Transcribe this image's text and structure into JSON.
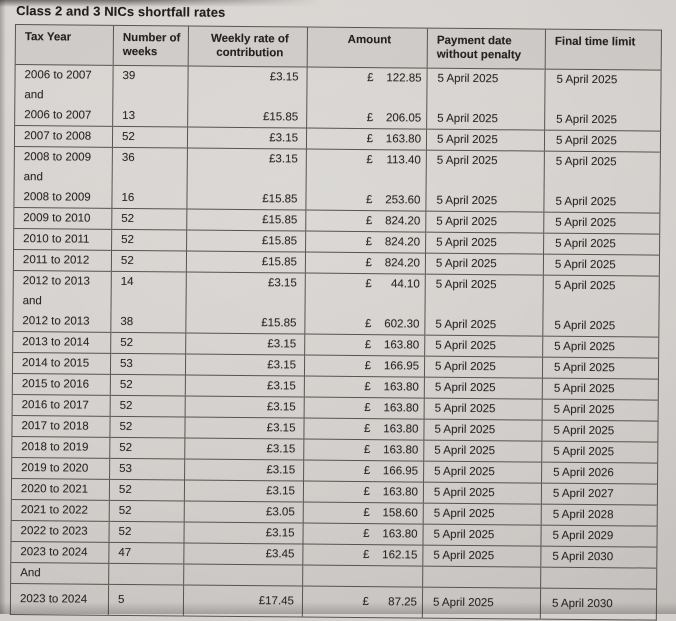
{
  "title": "Class 2 and 3 NICs shortfall rates",
  "colors": {
    "paper": "#d5d1ce",
    "table_line": "#57534e",
    "text": "#2a2927",
    "title_text": "#1f1e1c"
  },
  "table": {
    "columns": [
      "Tax Year",
      "Number of weeks",
      "Weekly rate of contribution",
      "Amount",
      "Payment date without penalty",
      "Final time limit"
    ],
    "rows": [
      {
        "tax_year": "2006 to 2007",
        "weeks": "39",
        "rate": "£3.15",
        "amount": "£ 122.85",
        "payment_date": "5 April 2025",
        "final_time_limit": "5 April 2025",
        "divider_above": true
      },
      {
        "tax_year": "and",
        "weeks": "",
        "rate": "",
        "amount": "",
        "payment_date": "",
        "final_time_limit": "",
        "divider_above": false
      },
      {
        "tax_year": "2006 to 2007",
        "weeks": "13",
        "rate": "£15.85",
        "amount": "£ 206.05",
        "payment_date": "5 April 2025",
        "final_time_limit": "5 April 2025",
        "divider_above": false
      },
      {
        "tax_year": "2007 to 2008",
        "weeks": "52",
        "rate": "£3.15",
        "amount": "£ 163.80",
        "payment_date": "5 April 2025",
        "final_time_limit": "5 April 2025",
        "divider_above": true
      },
      {
        "tax_year": "2008 to 2009",
        "weeks": "36",
        "rate": "£3.15",
        "amount": "£ 113.40",
        "payment_date": "5 April 2025",
        "final_time_limit": "5 April 2025",
        "divider_above": true
      },
      {
        "tax_year": "and",
        "weeks": "",
        "rate": "",
        "amount": "",
        "payment_date": "",
        "final_time_limit": "",
        "divider_above": false
      },
      {
        "tax_year": "2008 to 2009",
        "weeks": "16",
        "rate": "£15.85",
        "amount": "£ 253.60",
        "payment_date": "5 April 2025",
        "final_time_limit": "5 April 2025",
        "divider_above": false
      },
      {
        "tax_year": "2009 to 2010",
        "weeks": "52",
        "rate": "£15.85",
        "amount": "£ 824.20",
        "payment_date": "5 April 2025",
        "final_time_limit": "5 April 2025",
        "divider_above": true
      },
      {
        "tax_year": "2010 to 2011",
        "weeks": "52",
        "rate": "£15.85",
        "amount": "£ 824.20",
        "payment_date": "5 April 2025",
        "final_time_limit": "5 April 2025",
        "divider_above": true
      },
      {
        "tax_year": "2011 to 2012",
        "weeks": "52",
        "rate": "£15.85",
        "amount": "£ 824.20",
        "payment_date": "5 April 2025",
        "final_time_limit": "5 April 2025",
        "divider_above": true
      },
      {
        "tax_year": "2012 to 2013",
        "weeks": "14",
        "rate": "£3.15",
        "amount": "£ 44.10",
        "payment_date": "5 April 2025",
        "final_time_limit": "5 April 2025",
        "divider_above": true
      },
      {
        "tax_year": "and",
        "weeks": "",
        "rate": "",
        "amount": "",
        "payment_date": "",
        "final_time_limit": "",
        "divider_above": false
      },
      {
        "tax_year": "2012 to 2013",
        "weeks": "38",
        "rate": "£15.85",
        "amount": "£ 602.30",
        "payment_date": "5 April 2025",
        "final_time_limit": "5 April 2025",
        "divider_above": false
      },
      {
        "tax_year": "2013 to 2014",
        "weeks": "52",
        "rate": "£3.15",
        "amount": "£ 163.80",
        "payment_date": "5 April 2025",
        "final_time_limit": "5 April 2025",
        "divider_above": true
      },
      {
        "tax_year": "2014 to 2015",
        "weeks": "53",
        "rate": "£3.15",
        "amount": "£ 166.95",
        "payment_date": "5 April 2025",
        "final_time_limit": "5 April 2025",
        "divider_above": true
      },
      {
        "tax_year": "2015 to 2016",
        "weeks": "52",
        "rate": "£3.15",
        "amount": "£ 163.80",
        "payment_date": "5 April 2025",
        "final_time_limit": "5 April 2025",
        "divider_above": true
      },
      {
        "tax_year": "2016 to 2017",
        "weeks": "52",
        "rate": "£3.15",
        "amount": "£ 163.80",
        "payment_date": "5 April 2025",
        "final_time_limit": "5 April 2025",
        "divider_above": true
      },
      {
        "tax_year": "2017 to 2018",
        "weeks": "52",
        "rate": "£3.15",
        "amount": "£ 163.80",
        "payment_date": "5 April 2025",
        "final_time_limit": "5 April 2025",
        "divider_above": true
      },
      {
        "tax_year": "2018 to 2019",
        "weeks": "52",
        "rate": "£3.15",
        "amount": "£ 163.80",
        "payment_date": "5 April 2025",
        "final_time_limit": "5 April 2025",
        "divider_above": true
      },
      {
        "tax_year": "2019 to 2020",
        "weeks": "53",
        "rate": "£3.15",
        "amount": "£ 166.95",
        "payment_date": "5 April 2025",
        "final_time_limit": "5 April 2026",
        "divider_above": true
      },
      {
        "tax_year": "2020 to 2021",
        "weeks": "52",
        "rate": "£3.15",
        "amount": "£ 163.80",
        "payment_date": "5 April 2025",
        "final_time_limit": "5 April 2027",
        "divider_above": true
      },
      {
        "tax_year": "2021 to 2022",
        "weeks": "52",
        "rate": "£3.05",
        "amount": "£ 158.60",
        "payment_date": "5 April 2025",
        "final_time_limit": "5 April 2028",
        "divider_above": true
      },
      {
        "tax_year": "2022 to 2023",
        "weeks": "52",
        "rate": "£3.15",
        "amount": "£ 163.80",
        "payment_date": "5 April 2025",
        "final_time_limit": "5 April 2029",
        "divider_above": true
      },
      {
        "tax_year": "2023 to 2024",
        "weeks": "47",
        "rate": "£3.45",
        "amount": "£ 162.15",
        "payment_date": "5 April 2025",
        "final_time_limit": "5 April 2030",
        "divider_above": true
      },
      {
        "tax_year": "And",
        "weeks": "",
        "rate": "",
        "amount": "",
        "payment_date": "",
        "final_time_limit": "",
        "divider_above": true
      },
      {
        "tax_year": "2023 to 2024",
        "weeks": "5",
        "rate": "£17.45",
        "amount": "£ 87.25",
        "payment_date": "5 April 2025",
        "final_time_limit": "5 April 2030",
        "divider_above": true,
        "tall": true
      }
    ]
  }
}
